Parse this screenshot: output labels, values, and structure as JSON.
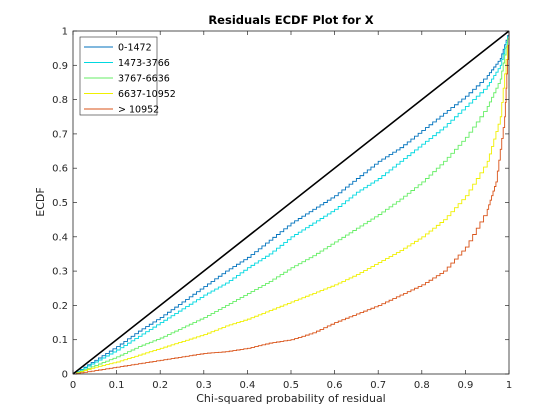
{
  "chart_data": {
    "type": "line",
    "title": "Residuals ECDF Plot for X",
    "xlabel": "Chi-squared probability of residual",
    "ylabel": "ECDF",
    "xlim": [
      0,
      1
    ],
    "ylim": [
      0,
      1
    ],
    "xticks": [
      "0",
      "0.1",
      "0.2",
      "0.3",
      "0.4",
      "0.5",
      "0.6",
      "0.7",
      "0.8",
      "0.9",
      "1"
    ],
    "yticks": [
      "0",
      "0.1",
      "0.2",
      "0.3",
      "0.4",
      "0.5",
      "0.6",
      "0.7",
      "0.8",
      "0.9",
      "1"
    ],
    "grid": false,
    "legend_position": "top-left",
    "reference_line": {
      "color": "#000000",
      "x": [
        0,
        1
      ],
      "y": [
        0,
        1
      ]
    },
    "series": [
      {
        "name": "0-1472",
        "color": "#0072BD",
        "x": [
          0,
          0.05,
          0.1,
          0.15,
          0.2,
          0.25,
          0.3,
          0.35,
          0.4,
          0.45,
          0.5,
          0.55,
          0.6,
          0.65,
          0.7,
          0.75,
          0.8,
          0.85,
          0.9,
          0.95,
          0.98,
          1.0
        ],
        "y": [
          0,
          0.04,
          0.08,
          0.125,
          0.165,
          0.21,
          0.255,
          0.3,
          0.34,
          0.39,
          0.44,
          0.48,
          0.52,
          0.57,
          0.62,
          0.66,
          0.71,
          0.76,
          0.81,
          0.87,
          0.92,
          1.0
        ]
      },
      {
        "name": "1473-3766",
        "color": "#00D8E0",
        "x": [
          0,
          0.05,
          0.1,
          0.15,
          0.2,
          0.25,
          0.3,
          0.35,
          0.4,
          0.45,
          0.5,
          0.55,
          0.6,
          0.65,
          0.7,
          0.75,
          0.8,
          0.85,
          0.9,
          0.95,
          0.98,
          1.0
        ],
        "y": [
          0,
          0.035,
          0.07,
          0.11,
          0.15,
          0.19,
          0.23,
          0.265,
          0.31,
          0.35,
          0.4,
          0.44,
          0.48,
          0.53,
          0.57,
          0.62,
          0.67,
          0.72,
          0.78,
          0.84,
          0.9,
          1.0
        ]
      },
      {
        "name": "3767-6636",
        "color": "#66EE66",
        "x": [
          0,
          0.05,
          0.1,
          0.15,
          0.2,
          0.25,
          0.3,
          0.35,
          0.4,
          0.45,
          0.5,
          0.55,
          0.6,
          0.65,
          0.7,
          0.75,
          0.8,
          0.85,
          0.9,
          0.95,
          0.98,
          1.0
        ],
        "y": [
          0,
          0.025,
          0.05,
          0.08,
          0.105,
          0.135,
          0.165,
          0.2,
          0.235,
          0.27,
          0.31,
          0.345,
          0.385,
          0.425,
          0.465,
          0.51,
          0.56,
          0.62,
          0.69,
          0.78,
          0.86,
          1.0
        ]
      },
      {
        "name": "6637-10952",
        "color": "#F0F000",
        "x": [
          0,
          0.05,
          0.1,
          0.15,
          0.2,
          0.25,
          0.3,
          0.35,
          0.4,
          0.45,
          0.5,
          0.55,
          0.6,
          0.65,
          0.7,
          0.75,
          0.8,
          0.85,
          0.9,
          0.95,
          0.98,
          1.0
        ],
        "y": [
          0,
          0.02,
          0.035,
          0.055,
          0.075,
          0.095,
          0.115,
          0.14,
          0.16,
          0.185,
          0.21,
          0.235,
          0.26,
          0.29,
          0.325,
          0.36,
          0.4,
          0.45,
          0.52,
          0.62,
          0.75,
          1.0
        ]
      },
      {
        "name": "> 10952",
        "color": "#D95319",
        "x": [
          0,
          0.05,
          0.1,
          0.15,
          0.2,
          0.25,
          0.3,
          0.35,
          0.4,
          0.45,
          0.5,
          0.55,
          0.6,
          0.65,
          0.7,
          0.75,
          0.8,
          0.85,
          0.9,
          0.95,
          0.97,
          0.99,
          1.0
        ],
        "y": [
          0,
          0.01,
          0.02,
          0.03,
          0.04,
          0.05,
          0.06,
          0.065,
          0.075,
          0.09,
          0.1,
          0.12,
          0.15,
          0.175,
          0.2,
          0.23,
          0.26,
          0.3,
          0.37,
          0.48,
          0.56,
          0.75,
          1.0
        ]
      }
    ]
  }
}
